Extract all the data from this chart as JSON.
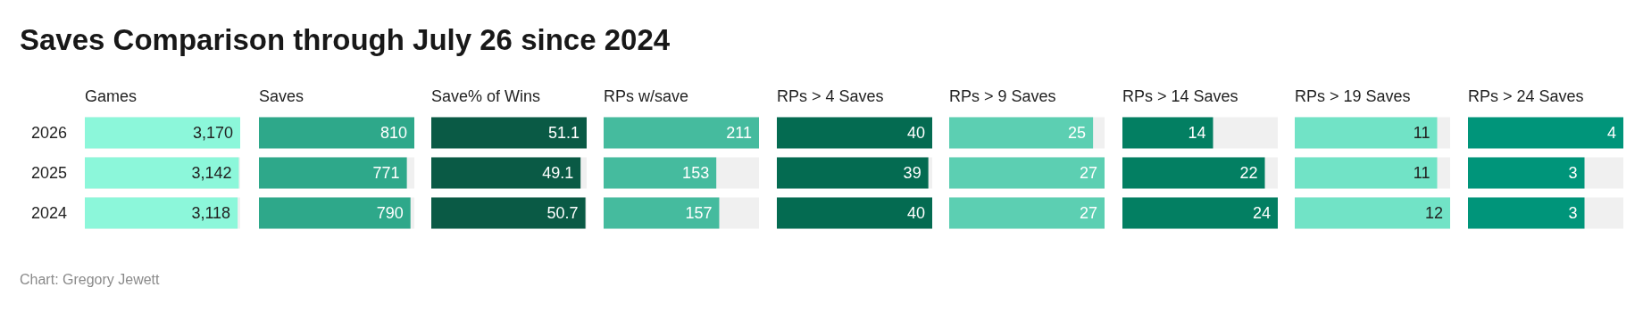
{
  "chart_data": [
    {
      "type": "bar",
      "orientation": "horizontal",
      "title": "Saves Comparison through July 26 since 2024",
      "annotations": [
        "Chart: Gregory Jewett"
      ],
      "xlabel": "Games",
      "categories": [
        "2026",
        "2025",
        "2024"
      ],
      "values": [
        3170,
        3142,
        3118
      ],
      "value_labels": [
        "3,170",
        "3,142",
        "3,118"
      ],
      "color": "#8cf7da",
      "tick_labels": "y"
    },
    {
      "type": "bar",
      "orientation": "horizontal",
      "xlabel": "Saves",
      "categories": [
        "2026",
        "2025",
        "2024"
      ],
      "values": [
        810,
        771,
        790
      ],
      "color": "#2ea88a",
      "data_labels": true,
      "tick_labels": false
    },
    {
      "type": "bar",
      "orientation": "horizontal",
      "xlabel": "Save% of Wins",
      "categories": [
        "2026",
        "2025",
        "2024"
      ],
      "values": [
        51.1,
        49.1,
        50.7
      ],
      "color": "#0a5a45",
      "data_labels": true,
      "tick_labels": false
    },
    {
      "type": "bar",
      "orientation": "horizontal",
      "xlabel": "RPs w/save",
      "categories": [
        "2026",
        "2025",
        "2024"
      ],
      "values": [
        211,
        153,
        157
      ],
      "color": "#45bb9e",
      "data_labels": true,
      "tick_labels": false
    },
    {
      "type": "bar",
      "orientation": "horizontal",
      "xlabel": "RPs > 4 Saves",
      "categories": [
        "2026",
        "2025",
        "2024"
      ],
      "values": [
        40,
        39,
        40
      ],
      "color": "#046b51",
      "data_labels": true,
      "tick_labels": false
    },
    {
      "type": "bar",
      "orientation": "horizontal",
      "xlabel": "RPs > 9 Saves",
      "categories": [
        "2026",
        "2025",
        "2024"
      ],
      "values": [
        25,
        27,
        27
      ],
      "color": "#5ccfb2",
      "data_labels": true,
      "tick_labels": false
    },
    {
      "type": "bar",
      "orientation": "horizontal",
      "xlabel": "RPs > 14 Saves",
      "categories": [
        "2026",
        "2025",
        "2024"
      ],
      "values": [
        14,
        22,
        24
      ],
      "color": "#037f62",
      "data_labels": true,
      "tick_labels": false
    },
    {
      "type": "bar",
      "orientation": "horizontal",
      "xlabel": "RPs > 19 Saves",
      "categories": [
        "2026",
        "2025",
        "2024"
      ],
      "values": [
        11,
        11,
        12
      ],
      "color": "#71e3c6",
      "data_labels": true,
      "tick_labels": false
    },
    {
      "type": "bar",
      "orientation": "horizontal",
      "xlabel": "RPs > 24 Saves",
      "categories": [
        "2026",
        "2025",
        "2024"
      ],
      "values": [
        4,
        3,
        3
      ],
      "color": "#00957a",
      "data_labels": true,
      "tick_labels": false
    }
  ]
}
